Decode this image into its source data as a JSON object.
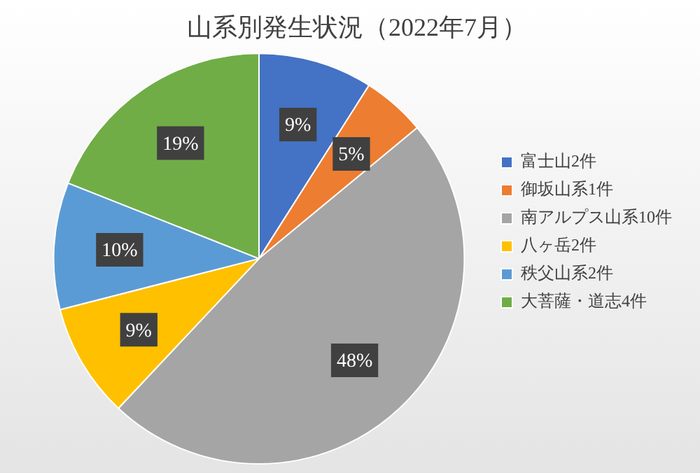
{
  "chart_data": {
    "type": "pie",
    "title": "山系別発生状況（2022年7月）",
    "categories": [
      "富士山2件",
      "御坂山系1件",
      "南アルプス山系10件",
      "八ヶ岳2件",
      "秩父山系2件",
      "大菩薩・道志4件"
    ],
    "values": [
      9,
      5,
      48,
      9,
      10,
      19
    ],
    "colors": [
      "#4472c4",
      "#ed7d31",
      "#a5a5a5",
      "#ffc000",
      "#5b9bd5",
      "#70ad47"
    ],
    "value_labels": [
      "9%",
      "5%",
      "48%",
      "9%",
      "10%",
      "19%"
    ],
    "legend": "right"
  }
}
